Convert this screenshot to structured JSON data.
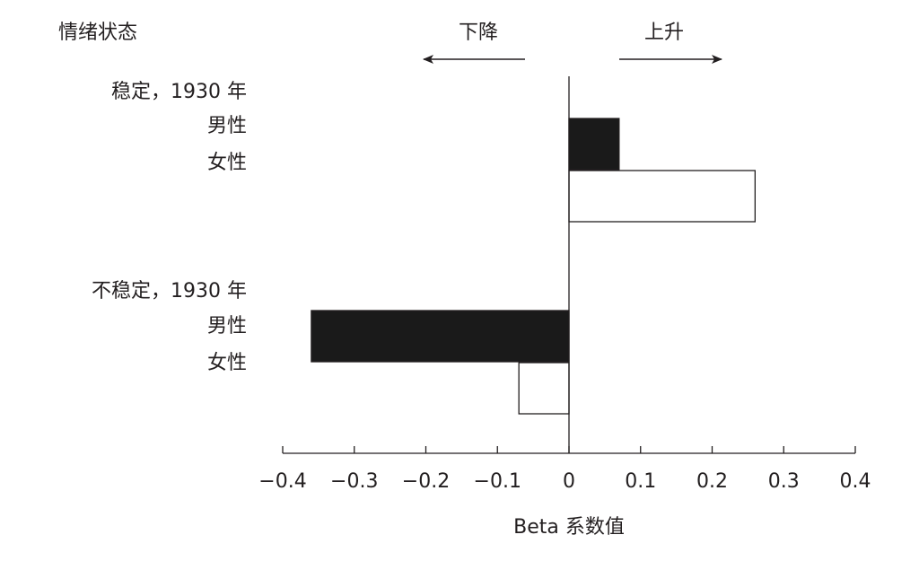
{
  "chart_data": {
    "type": "bar",
    "orientation": "horizontal",
    "y_label": "情绪状态",
    "x_label": "Beta 系数值",
    "annotations": [
      "下降",
      "上升"
    ],
    "categories": [
      "稳定，1930 年",
      "不稳定，1930 年"
    ],
    "series": [
      {
        "name": "男性",
        "color": "#1a1a1a",
        "values": [
          0.07,
          -0.36
        ]
      },
      {
        "name": "女性",
        "color": "#ffffff",
        "values": [
          0.26,
          -0.07
        ]
      }
    ],
    "xlim": [
      -0.4,
      0.4
    ],
    "xticks": [
      {
        "value": -0.4,
        "label": "−0.4"
      },
      {
        "value": -0.3,
        "label": "−0.3"
      },
      {
        "value": -0.2,
        "label": "−0.2"
      },
      {
        "value": -0.1,
        "label": "−0.1"
      },
      0,
      0.1,
      0.2,
      0.3,
      0.4
    ]
  }
}
